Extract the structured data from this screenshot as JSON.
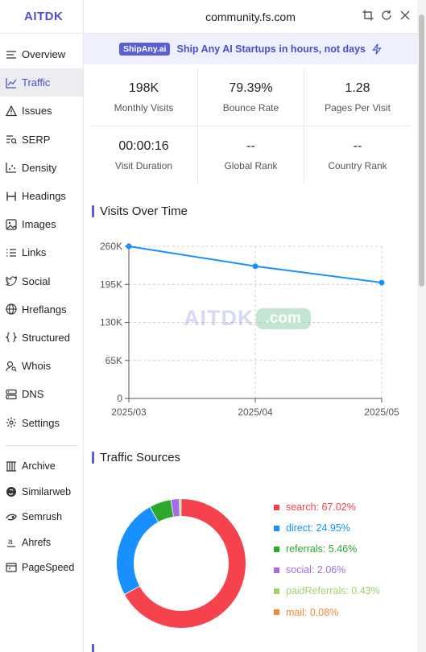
{
  "sidebar": {
    "brand": "AITDK",
    "items": [
      {
        "label": "Overview",
        "icon": "list-icon"
      },
      {
        "label": "Traffic",
        "icon": "trend-icon",
        "active": true
      },
      {
        "label": "Issues",
        "icon": "warning-icon"
      },
      {
        "label": "SERP",
        "icon": "serp-icon"
      },
      {
        "label": "Density",
        "icon": "density-icon"
      },
      {
        "label": "Headings",
        "icon": "heading-icon"
      },
      {
        "label": "Images",
        "icon": "image-icon"
      },
      {
        "label": "Links",
        "icon": "links-icon"
      },
      {
        "label": "Social",
        "icon": "twitter-icon"
      },
      {
        "label": "Hreflangs",
        "icon": "globe-icon"
      },
      {
        "label": "Structured",
        "icon": "braces-icon"
      },
      {
        "label": "Whois",
        "icon": "user-search-icon"
      },
      {
        "label": "DNS",
        "icon": "server-icon"
      },
      {
        "label": "Settings",
        "icon": "gear-icon"
      }
    ],
    "external": [
      {
        "label": "Archive",
        "icon": "archive-icon"
      },
      {
        "label": "Similarweb",
        "icon": "similarweb-icon"
      },
      {
        "label": "Semrush",
        "icon": "semrush-icon"
      },
      {
        "label": "Ahrefs",
        "icon": "ahrefs-icon"
      },
      {
        "label": "PageSpeed",
        "icon": "pagespeed-icon"
      }
    ]
  },
  "header": {
    "title": "community.fs.com"
  },
  "banner": {
    "pill": "ShipAny.ai",
    "text": "Ship Any AI Startups in hours, not days"
  },
  "stats": [
    {
      "value": "198K",
      "label": "Monthly Visits"
    },
    {
      "value": "79.39%",
      "label": "Bounce Rate"
    },
    {
      "value": "1.28",
      "label": "Pages Per Visit"
    },
    {
      "value": "00:00:16",
      "label": "Visit Duration"
    },
    {
      "value": "--",
      "label": "Global Rank"
    },
    {
      "value": "--",
      "label": "Country Rank"
    }
  ],
  "visits_title": "Visits Over Time",
  "sources_title": "Traffic Sources",
  "watermark": {
    "main": "AITDK",
    "suffix": ".com"
  },
  "chart_data": [
    {
      "type": "line",
      "x": [
        "2025/03",
        "2025/04",
        "2025/05"
      ],
      "series": [
        {
          "values": [
            260000,
            226000,
            198000
          ]
        }
      ],
      "yticks": [
        "0",
        "65K",
        "130K",
        "195K",
        "260K"
      ],
      "ylim": [
        0,
        260000
      ],
      "grid": true,
      "color": "#1890ff"
    },
    {
      "type": "pie",
      "donut": true,
      "labels": [
        "search",
        "direct",
        "referrals",
        "social",
        "paidReferrals",
        "mail"
      ],
      "values": [
        67.02,
        24.95,
        5.46,
        2.06,
        0.43,
        0.08
      ],
      "legend": [
        "search: 67.02%",
        "direct: 24.95%",
        "referrals: 5.46%",
        "social: 2.06%",
        "paidReferrals: 0.43%",
        "mail: 0.08%"
      ],
      "colors": [
        "#f5424d",
        "#1890ff",
        "#2da82d",
        "#a86ae8",
        "#a0d468",
        "#f08a3c"
      ],
      "legend_position": "right"
    }
  ]
}
